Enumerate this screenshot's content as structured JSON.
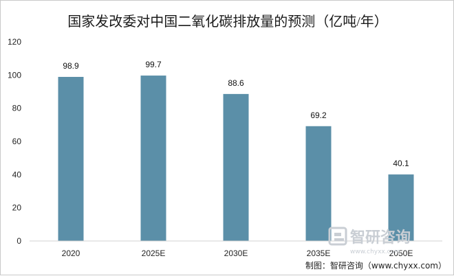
{
  "chart_data": {
    "type": "bar",
    "title": "国家发改委对中国二氧化碳排放量的预测（亿吨/年）",
    "categories": [
      "2020",
      "2025E",
      "2030E",
      "2035E",
      "2050E"
    ],
    "series": [
      {
        "values": [
          98.9,
          99.7,
          88.6,
          69.2,
          40.1
        ]
      }
    ],
    "data_labels": [
      "98.9",
      "99.7",
      "88.6",
      "69.2",
      "40.1"
    ],
    "ylim": [
      0,
      120
    ],
    "y_ticks": [
      0,
      20,
      40,
      60,
      80,
      100,
      120
    ],
    "y_tick_labels": [
      "0",
      "20",
      "40",
      "60",
      "80",
      "100",
      "120"
    ],
    "grid": false,
    "bar_color": "#5b8fa8",
    "xlabel": "",
    "ylabel": ""
  },
  "watermark": {
    "name": "智研咨询",
    "url": "www.chyxx.com",
    "logo_icon": "chyxx-logo-icon"
  },
  "credit": "制图：智研咨询（www.chyxx.com）"
}
